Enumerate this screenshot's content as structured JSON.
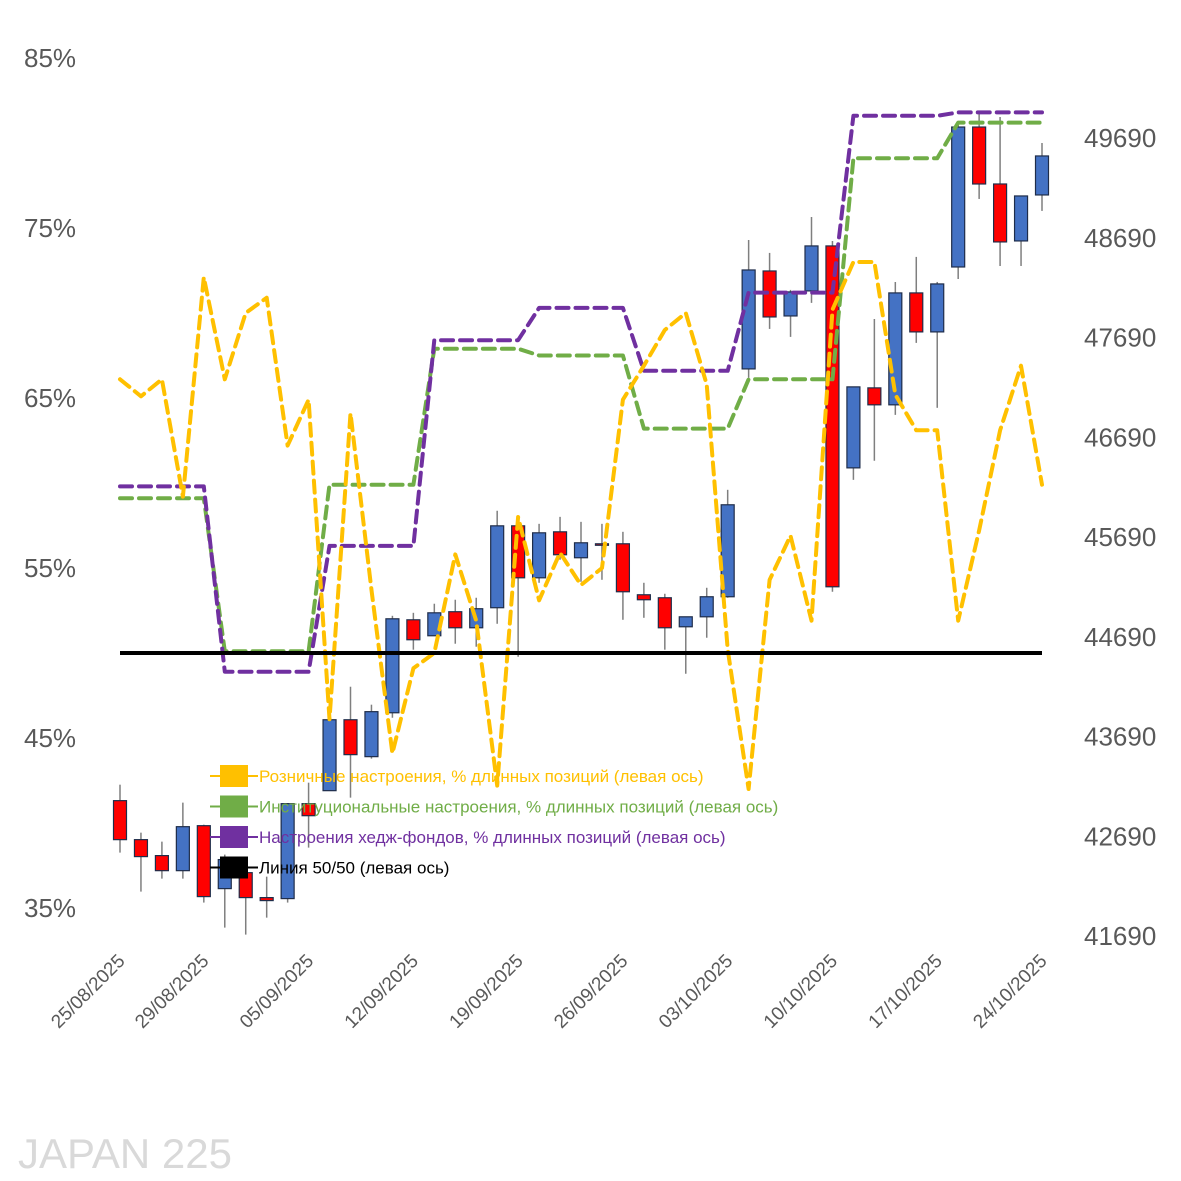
{
  "chart_data": {
    "type": "candlestick+line",
    "title": "",
    "watermark": "JAPAN 225",
    "x_tick_labels": [
      "25/08/2025",
      "29/08/2025",
      "05/09/2025",
      "12/09/2025",
      "19/09/2025",
      "26/09/2025",
      "03/10/2025",
      "10/10/2025",
      "17/10/2025",
      "24/10/2025"
    ],
    "x_tick_index": [
      0,
      4,
      9,
      14,
      19,
      24,
      29,
      34,
      39,
      44
    ],
    "dates": [
      "25/08/2025",
      "26/08/2025",
      "27/08/2025",
      "28/08/2025",
      "29/08/2025",
      "01/09/2025",
      "02/09/2025",
      "03/09/2025",
      "04/09/2025",
      "05/09/2025",
      "08/09/2025",
      "09/09/2025",
      "10/09/2025",
      "11/09/2025",
      "12/09/2025",
      "15/09/2025",
      "16/09/2025",
      "17/09/2025",
      "18/09/2025",
      "19/09/2025",
      "22/09/2025",
      "23/09/2025",
      "24/09/2025",
      "25/09/2025",
      "26/09/2025",
      "29/09/2025",
      "30/09/2025",
      "01/10/2025",
      "02/10/2025",
      "03/10/2025",
      "06/10/2025",
      "07/10/2025",
      "08/10/2025",
      "09/10/2025",
      "10/10/2025",
      "13/10/2025",
      "14/10/2025",
      "15/10/2025",
      "16/10/2025",
      "17/10/2025",
      "20/10/2025",
      "21/10/2025",
      "22/10/2025",
      "23/10/2025",
      "24/10/2025"
    ],
    "left_axis": {
      "ticks": [
        "85%",
        "75%",
        "65%",
        "55%",
        "45%",
        "35%"
      ],
      "values": [
        85,
        75,
        65,
        55,
        45,
        35
      ],
      "range": [
        35,
        85
      ]
    },
    "right_axis": {
      "ticks": [
        "49690",
        "48690",
        "47690",
        "46690",
        "45690",
        "44690",
        "43690",
        "42690",
        "41690"
      ],
      "values": [
        49690,
        48690,
        47690,
        46690,
        45690,
        44690,
        43690,
        42690,
        41690
      ],
      "range": [
        41690,
        49690
      ]
    },
    "ohlc": [
      [
        43047,
        43207,
        42526,
        42656
      ],
      [
        42656,
        42726,
        42135,
        42486
      ],
      [
        42496,
        42636,
        42265,
        42345
      ],
      [
        42345,
        43027,
        42265,
        42786
      ],
      [
        42796,
        42806,
        42025,
        42085
      ],
      [
        42165,
        42506,
        41774,
        42456
      ],
      [
        42325,
        42405,
        41704,
        42075
      ],
      [
        42075,
        42285,
        41874,
        42045
      ],
      [
        42065,
        43017,
        42025,
        43017
      ],
      [
        43017,
        43227,
        42576,
        42896
      ],
      [
        43147,
        43898,
        43147,
        43858
      ],
      [
        43858,
        44189,
        43077,
        43508
      ],
      [
        43488,
        44009,
        43468,
        43939
      ],
      [
        43928,
        44900,
        43878,
        44870
      ],
      [
        44860,
        44930,
        44560,
        44660
      ],
      [
        44700,
        45021,
        44700,
        44930
      ],
      [
        44941,
        45061,
        44620,
        44780
      ],
      [
        44780,
        45081,
        44590,
        44971
      ],
      [
        44981,
        45953,
        44820,
        45802
      ],
      [
        45802,
        45822,
        44490,
        45281
      ],
      [
        45281,
        45822,
        45231,
        45732
      ],
      [
        45742,
        45892,
        45462,
        45512
      ],
      [
        45482,
        45842,
        45241,
        45632
      ],
      [
        45622,
        45822,
        45261,
        45612
      ],
      [
        45622,
        45742,
        44860,
        45141
      ],
      [
        45111,
        45231,
        44880,
        45061
      ],
      [
        45081,
        45121,
        44560,
        44780
      ],
      [
        44790,
        44890,
        44319,
        44890
      ],
      [
        44890,
        45181,
        44680,
        45091
      ],
      [
        45091,
        46163,
        45081,
        46013
      ],
      [
        47375,
        48668,
        47285,
        48367
      ],
      [
        48357,
        48538,
        47776,
        47896
      ],
      [
        47906,
        48167,
        47696,
        48147
      ],
      [
        48157,
        48898,
        48037,
        48608
      ],
      [
        48608,
        48658,
        45141,
        45191
      ],
      [
        46383,
        47195,
        46263,
        47195
      ],
      [
        47185,
        47876,
        46454,
        47015
      ],
      [
        47015,
        48247,
        46914,
        48137
      ],
      [
        48137,
        48498,
        47636,
        47746
      ],
      [
        47746,
        48247,
        46985,
        48227
      ],
      [
        48397,
        49820,
        48277,
        49800
      ],
      [
        49800,
        49940,
        49079,
        49229
      ],
      [
        49229,
        49900,
        48407,
        48648
      ],
      [
        48658,
        49109,
        48407,
        49109
      ],
      [
        49119,
        49640,
        48959,
        49510
      ]
    ],
    "series": [
      {
        "name": "Розничные настроения, % длинных позиций (левая ось)",
        "color": "#FFC000",
        "style": "dashed",
        "values": [
          66.1,
          65.1,
          66.1,
          59.2,
          72.1,
          66.1,
          70.0,
          70.9,
          62.2,
          64.9,
          46.1,
          64.1,
          53.7,
          44.1,
          49.1,
          50.0,
          55.8,
          51.9,
          42.2,
          58.0,
          53.1,
          55.9,
          54.0,
          55.0,
          64.9,
          66.9,
          69.0,
          70.0,
          65.8,
          50.2,
          42.0,
          54.3,
          56.9,
          51.9,
          70.2,
          73.0,
          73.0,
          65.2,
          63.1,
          63.1,
          51.9,
          57.2,
          63.1,
          66.9,
          59.9
        ]
      },
      {
        "name": "Институциональные настроения, % длинных позиций (левая ось)",
        "color": "#70AD47",
        "style": "dashed",
        "values": [
          59.1,
          59.1,
          59.1,
          59.1,
          59.1,
          50.1,
          50.1,
          50.1,
          50.1,
          50.1,
          59.9,
          59.9,
          59.9,
          59.9,
          59.9,
          67.9,
          67.9,
          67.9,
          67.9,
          67.9,
          67.5,
          67.5,
          67.5,
          67.5,
          67.5,
          63.2,
          63.2,
          63.2,
          63.2,
          63.2,
          66.1,
          66.1,
          66.1,
          66.1,
          66.1,
          79.1,
          79.1,
          79.1,
          79.1,
          79.1,
          81.2,
          81.2,
          81.2,
          81.2,
          81.2
        ]
      },
      {
        "name": "Настроения хедж-фондов, % длинных позиций (левая ось)",
        "color": "#7030A0",
        "style": "dashed",
        "values": [
          59.8,
          59.8,
          59.8,
          59.8,
          59.8,
          48.9,
          48.9,
          48.9,
          48.9,
          48.9,
          56.3,
          56.3,
          56.3,
          56.3,
          56.3,
          68.4,
          68.4,
          68.4,
          68.4,
          68.4,
          70.3,
          70.3,
          70.3,
          70.3,
          70.3,
          66.6,
          66.6,
          66.6,
          66.6,
          66.6,
          71.2,
          71.2,
          71.2,
          71.2,
          71.2,
          81.6,
          81.6,
          81.6,
          81.6,
          81.6,
          81.8,
          81.8,
          81.8,
          81.8,
          81.8
        ]
      },
      {
        "name": "Линия 50/50 (левая ось)",
        "color": "#000000",
        "style": "solid",
        "values": [
          50,
          50,
          50,
          50,
          50,
          50,
          50,
          50,
          50,
          50,
          50,
          50,
          50,
          50,
          50,
          50,
          50,
          50,
          50,
          50,
          50,
          50,
          50,
          50,
          50,
          50,
          50,
          50,
          50,
          50,
          50,
          50,
          50,
          50,
          50,
          50,
          50,
          50,
          50,
          50,
          50,
          50,
          50,
          50,
          50
        ]
      }
    ],
    "candle_colors": {
      "up": "#4472C4",
      "down": "#FF0000"
    },
    "legend_position": "bottom-left inside",
    "grid": false
  }
}
